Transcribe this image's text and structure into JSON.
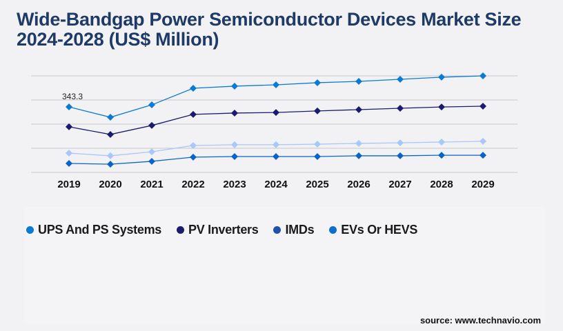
{
  "title": "Wide-Bandgap Power Semiconductor Devices Market Size 2024-2028 (US$ Million)",
  "source": "source: www.technavio.com",
  "chart_data": {
    "type": "line",
    "title": "Wide-Bandgap Power Semiconductor Devices Market Size 2024-2028 (US$ Million)",
    "x": [
      "2019",
      "2020",
      "2021",
      "2022",
      "2023",
      "2024",
      "2025",
      "2026",
      "2027",
      "2028",
      "2029"
    ],
    "ylim": [
      0,
      506
    ],
    "grid": true,
    "legend_placement": "bottom",
    "annotations": [
      {
        "x": "2019",
        "series": 0,
        "text": "343.3"
      }
    ],
    "series": [
      {
        "name": "UPS And PS Systems",
        "color": "#0a7bd4",
        "values": [
          343.3,
          289,
          354,
          441,
          452,
          459,
          470,
          477,
          488,
          499,
          506
        ]
      },
      {
        "name": "PV Inverters",
        "color": "#1a1a6e",
        "values": [
          239,
          199,
          246,
          304,
          311,
          314,
          322,
          329,
          336,
          343,
          347
        ]
      },
      {
        "name": "IMDs",
        "color": "#a8c8f8",
        "legend_color": "#1f4fb0",
        "values": [
          101,
          87,
          108,
          141,
          145,
          145,
          148,
          152,
          155,
          159,
          163
        ]
      },
      {
        "name": "EVs Or HEVS",
        "color": "#0a63c8",
        "legend_color": "#0a6fd0",
        "values": [
          47,
          43,
          58,
          80,
          83,
          83,
          83,
          87,
          87,
          90,
          90
        ]
      }
    ]
  }
}
